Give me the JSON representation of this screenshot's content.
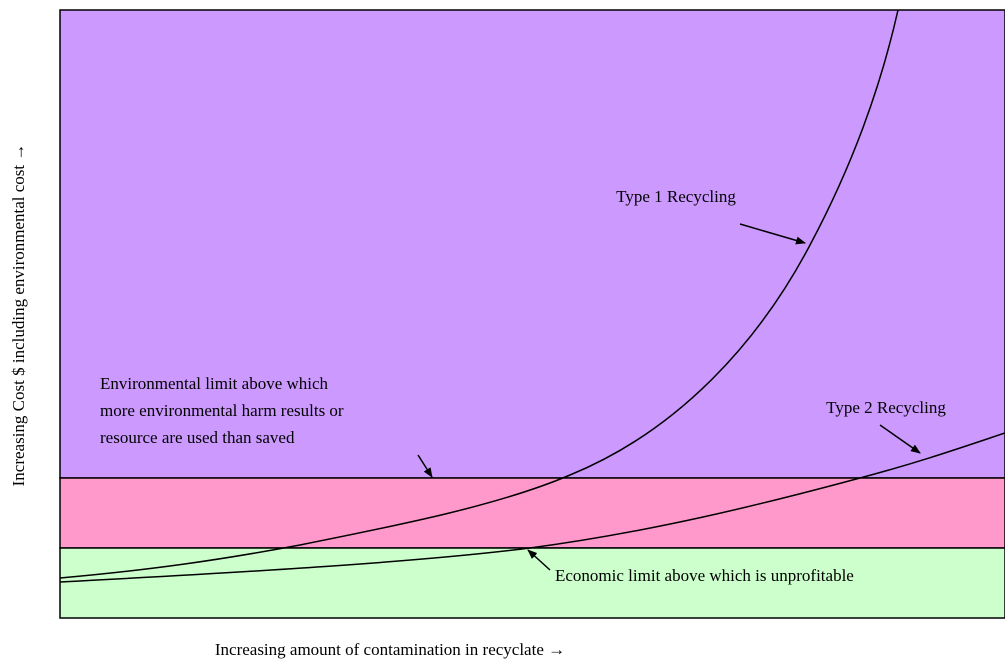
{
  "labels": {
    "type1": "Type 1 Recycling",
    "type2": "Type 2 Recycling",
    "environmental_limit": [
      "Environmental limit above which",
      "more environmental harm results or",
      "resource are used than saved"
    ],
    "economic_limit": "Economic limit above which is unprofitable",
    "x_axis": "Increasing amount of contamination in recyclate →",
    "y_axis": "Increasing Cost $ including environmental cost →"
  }
}
